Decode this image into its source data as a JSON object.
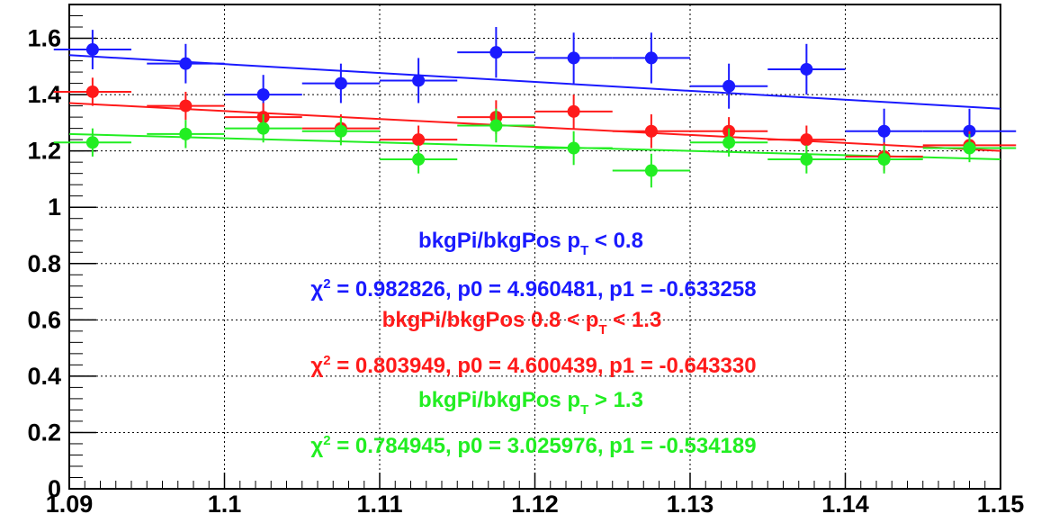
{
  "chart_data": {
    "type": "scatter",
    "title": "",
    "xlabel": "",
    "ylabel": "",
    "xlim": [
      1.09,
      1.15
    ],
    "ylim": [
      0,
      1.72
    ],
    "grid": true,
    "x_ticks": [
      "1.09",
      "1.1",
      "1.11",
      "1.12",
      "1.13",
      "1.14",
      "1.15"
    ],
    "y_ticks": [
      "0",
      "0.2",
      "0.4",
      "0.6",
      "0.8",
      "1",
      "1.2",
      "1.4",
      "1.6"
    ],
    "x": [
      1.0915,
      1.0975,
      1.1025,
      1.1075,
      1.1125,
      1.1175,
      1.1225,
      1.1275,
      1.1325,
      1.1375,
      1.1425,
      1.148
    ],
    "x_err": [
      0.0025,
      0.0025,
      0.0025,
      0.0025,
      0.0025,
      0.0025,
      0.0025,
      0.0025,
      0.0025,
      0.0025,
      0.0025,
      0.003
    ],
    "series": [
      {
        "color": "#1a1aff",
        "y": [
          1.56,
          1.51,
          1.4,
          1.44,
          1.45,
          1.55,
          1.53,
          1.53,
          1.43,
          1.49,
          1.27,
          1.27
        ],
        "y_err": [
          0.07,
          0.07,
          0.07,
          0.07,
          0.08,
          0.09,
          0.09,
          0.09,
          0.08,
          0.09,
          0.08,
          0.08
        ],
        "fit": [
          1.54,
          1.35
        ]
      },
      {
        "color": "#ff1a1a",
        "y": [
          1.41,
          1.36,
          1.32,
          1.28,
          1.24,
          1.32,
          1.34,
          1.27,
          1.27,
          1.24,
          1.18,
          1.22
        ],
        "y_err": [
          0.05,
          0.05,
          0.05,
          0.05,
          0.05,
          0.06,
          0.06,
          0.06,
          0.05,
          0.05,
          0.05,
          0.05
        ],
        "fit": [
          1.37,
          1.2
        ]
      },
      {
        "color": "#22ee22",
        "y": [
          1.23,
          1.26,
          1.28,
          1.27,
          1.17,
          1.29,
          1.21,
          1.13,
          1.23,
          1.17,
          1.17,
          1.21
        ],
        "y_err": [
          0.05,
          0.05,
          0.05,
          0.05,
          0.05,
          0.06,
          0.06,
          0.06,
          0.05,
          0.05,
          0.05,
          0.05
        ],
        "fit": [
          1.26,
          1.17
        ]
      }
    ],
    "annotations": {
      "blue_title": {
        "pre": "bkgPi/bkgPos p",
        "sub": "T",
        "post": " < 0.8"
      },
      "blue_fit": {
        "chi": "χ",
        "sup": "2",
        "post": " = 0.982826, p0 = 4.960481, p1 = -0.633258"
      },
      "red_title": {
        "pre": "bkgPi/bkgPos 0.8 < p",
        "sub": "T",
        "post": " < 1.3"
      },
      "red_fit": {
        "chi": "χ",
        "sup": "2",
        "post": " = 0.803949, p0 = 4.600439, p1 = -0.643330"
      },
      "green_title": {
        "pre": "bkgPi/bkgPos p",
        "sub": "T",
        "post": " > 1.3"
      },
      "green_fit": {
        "chi": "χ",
        "sup": "2",
        "post": " = 0.784945, p0 = 3.025976, p1 = -0.534189"
      }
    }
  }
}
